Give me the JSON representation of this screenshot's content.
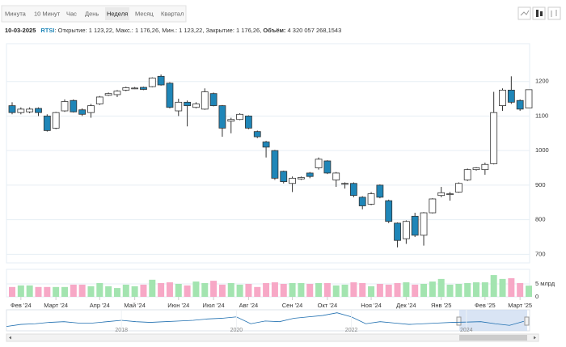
{
  "tabs": [
    "Минута",
    "10 Минут",
    "Час",
    "День",
    "Неделя",
    "Месяц",
    "Квартал"
  ],
  "active_tab": 4,
  "header": {
    "date": "10-03-2025",
    "symbol": "RTSI",
    "ohlc_text": ": Открытие: 1 123,22, Макс.: 1 176,26, Мин.: 1 123,22, Закрытие: 1 176,26, ",
    "volume_label": "Объём:",
    "volume_text": " 4 320 057 268,1543"
  },
  "chart_data": {
    "type": "candlestick",
    "categories": [
      null,
      "Фев '24",
      null,
      null,
      null,
      "Март '24",
      null,
      null,
      null,
      null,
      "Апр '24",
      null,
      null,
      null,
      "Май '24",
      null,
      null,
      null,
      null,
      "Июн '24",
      null,
      null,
      null,
      "Июл '24",
      null,
      null,
      null,
      "Авг '24",
      null,
      null,
      null,
      null,
      "Сен '24",
      null,
      null,
      null,
      "Окт '24",
      null,
      null,
      null,
      null,
      "Ноя '24",
      null,
      null,
      null,
      "Дек '24",
      null,
      null,
      null,
      "Янв '25",
      null,
      null,
      null,
      null,
      "Фев '25",
      null,
      null,
      null,
      "Март '25",
      null
    ],
    "open": [
      1130,
      1110,
      1112,
      1122,
      1100,
      1065,
      1115,
      1145,
      1118,
      1110,
      1135,
      1160,
      1162,
      1175,
      1180,
      1183,
      1185,
      1215,
      1195,
      1115,
      1140,
      1125,
      1120,
      1165,
      1130,
      1085,
      1090,
      1100,
      1055,
      1025,
      1000,
      940,
      905,
      918,
      935,
      950,
      970,
      915,
      905,
      905,
      865,
      845,
      900,
      855,
      790,
      745,
      810,
      755,
      820,
      870,
      875,
      880,
      915,
      945,
      945,
      962,
      1130,
      1175,
      1145,
      1123.22
    ],
    "high": [
      1140,
      1125,
      1125,
      1125,
      1105,
      1112,
      1148,
      1148,
      1122,
      1135,
      1158,
      1168,
      1175,
      1185,
      1184,
      1185,
      1212,
      1220,
      1198,
      1150,
      1145,
      1140,
      1180,
      1168,
      1132,
      1095,
      1108,
      1102,
      1058,
      1028,
      1002,
      942,
      925,
      925,
      938,
      980,
      972,
      938,
      908,
      908,
      868,
      880,
      902,
      858,
      792,
      798,
      820,
      822,
      862,
      895,
      880,
      908,
      948,
      952,
      965,
      1170,
      1180,
      1215,
      1148,
      1176.26
    ],
    "low": [
      1105,
      1105,
      1108,
      1100,
      1055,
      1062,
      1112,
      1110,
      1100,
      1095,
      1132,
      1158,
      1155,
      1172,
      1178,
      1175,
      1183,
      1188,
      1122,
      1100,
      1070,
      1122,
      1118,
      1128,
      1040,
      1050,
      1088,
      1062,
      1036,
      980,
      915,
      905,
      880,
      915,
      920,
      945,
      932,
      895,
      890,
      865,
      830,
      842,
      862,
      790,
      720,
      730,
      750,
      725,
      818,
      865,
      855,
      878,
      912,
      942,
      930,
      960,
      1115,
      1135,
      1115,
      1123.22
    ],
    "close": [
      1110,
      1120,
      1120,
      1110,
      1058,
      1110,
      1142,
      1112,
      1105,
      1130,
      1155,
      1165,
      1172,
      1182,
      1181,
      1177,
      1210,
      1190,
      1125,
      1140,
      1130,
      1135,
      1170,
      1130,
      1065,
      1090,
      1105,
      1065,
      1040,
      1010,
      920,
      910,
      920,
      922,
      925,
      975,
      935,
      935,
      905,
      870,
      840,
      875,
      865,
      795,
      740,
      795,
      755,
      820,
      860,
      878,
      875,
      905,
      945,
      950,
      960,
      1110,
      1175,
      1140,
      1120,
      1176.26
    ],
    "ylim": [
      675,
      1300
    ],
    "yticks": [
      700,
      800,
      900,
      1000,
      1100,
      1200
    ],
    "grid": true,
    "up_color": "#ffffff",
    "down_color": "#1f86b8",
    "volume": {
      "values": [
        3800000000,
        4400000000,
        4400000000,
        3800000000,
        3800000000,
        3800000000,
        3800000000,
        4700000000,
        4700000000,
        4100000000,
        5300000000,
        4100000000,
        3400000000,
        4700000000,
        4100000000,
        4700000000,
        6600000000,
        5300000000,
        5600000000,
        5000000000,
        4400000000,
        5900000000,
        5300000000,
        6200000000,
        4700000000,
        5300000000,
        4700000000,
        5000000000,
        3800000000,
        5300000000,
        5600000000,
        5000000000,
        5300000000,
        5300000000,
        5000000000,
        5300000000,
        5300000000,
        4400000000,
        4700000000,
        5600000000,
        5300000000,
        4100000000,
        5000000000,
        4700000000,
        5300000000,
        5600000000,
        4700000000,
        5000000000,
        5900000000,
        6900000000,
        4700000000,
        5000000000,
        5300000000,
        5600000000,
        5600000000,
        8400000000,
        6900000000,
        7200000000,
        5300000000,
        4320057268.1543
      ],
      "ylim": [
        0,
        10600000000
      ],
      "yticks": [
        0,
        {
          "value": 5000000000,
          "label": "5 млрд"
        }
      ],
      "up_color": "#a3e4b0",
      "down_color": "#f7a8c6"
    },
    "navigator": {
      "x": [
        2016,
        2016.25,
        2016.5,
        2016.75,
        2017,
        2017.25,
        2017.5,
        2017.75,
        2018,
        2018.25,
        2018.5,
        2018.75,
        2019,
        2019.25,
        2019.5,
        2019.75,
        2020,
        2020.25,
        2020.5,
        2020.75,
        2021,
        2021.25,
        2021.5,
        2021.75,
        2022,
        2022.25,
        2022.5,
        2022.75,
        2023,
        2023.25,
        2023.5,
        2023.75,
        2024,
        2024.25,
        2024.5,
        2024.75,
        2025
      ],
      "values": [
        800,
        950,
        1000,
        1100,
        1150,
        1050,
        1050,
        1150,
        1250,
        1150,
        1100,
        1150,
        1200,
        1250,
        1350,
        1400,
        1500,
        1000,
        1200,
        1150,
        1400,
        1500,
        1600,
        1800,
        1500,
        1000,
        1150,
        1050,
        950,
        1000,
        1050,
        1100,
        1120,
        1150,
        1000,
        880,
        1176
      ],
      "xlim": [
        2016,
        2025.1
      ],
      "xticks": [
        2018,
        2020,
        2022,
        2024
      ],
      "ylim": [
        600,
        1900
      ],
      "color": "#1f6fb0"
    }
  }
}
